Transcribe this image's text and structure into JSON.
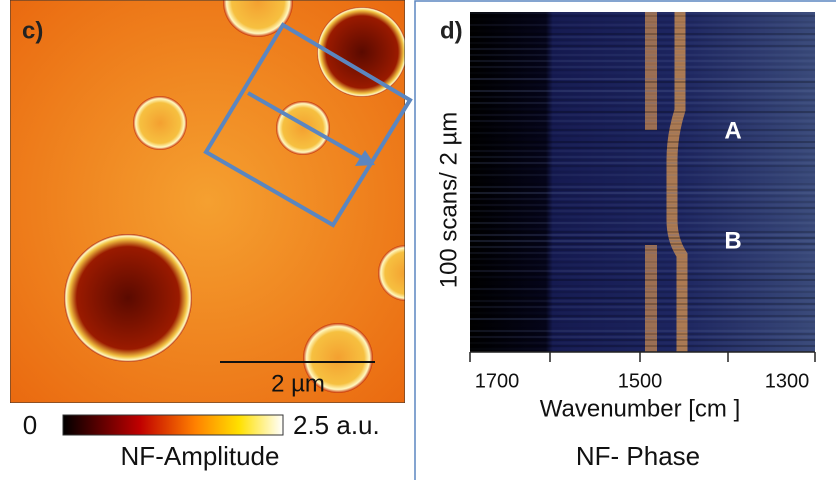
{
  "panel_c": {
    "label": "c)",
    "scale_bar": "2 µm",
    "colorbar_min": "0",
    "colorbar_max": "2.5 a.u.",
    "caption": "NF-Amplitude"
  },
  "panel_d": {
    "label": "d)",
    "y_label": "100 scans/ 2 µm",
    "x_label": "Wavenumber [cm ]",
    "x_ticks": [
      "1700",
      "1500",
      "1300"
    ],
    "markers": [
      "A",
      "B"
    ],
    "caption": "NF- Phase"
  }
}
